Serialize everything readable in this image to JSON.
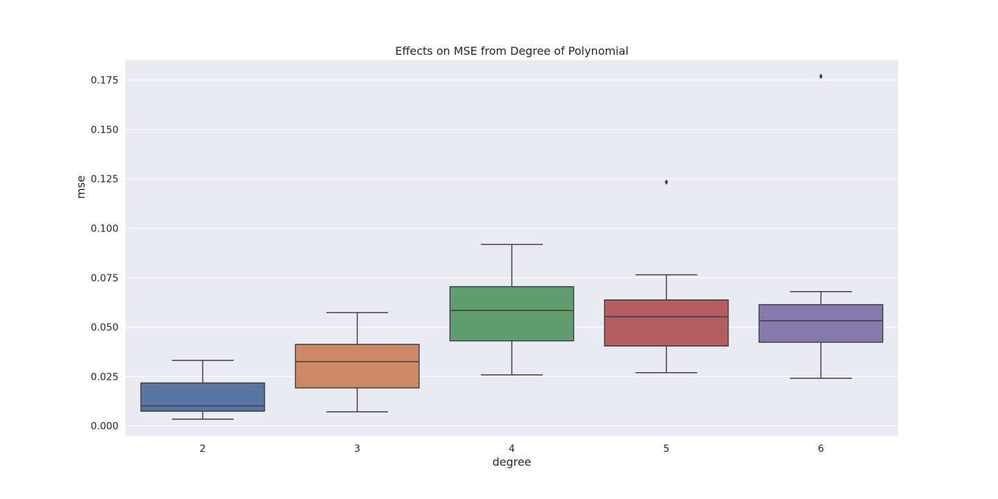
{
  "chart_data": {
    "type": "boxplot",
    "title": "Effects on MSE from Degree of Polynomial",
    "xlabel": "degree",
    "ylabel": "mse",
    "categories": [
      "2",
      "3",
      "4",
      "5",
      "6"
    ],
    "ylim": [
      -0.005,
      0.185
    ],
    "yticks": [
      0.0,
      0.025,
      0.05,
      0.075,
      0.1,
      0.125,
      0.15,
      0.175
    ],
    "ytick_labels": [
      "0.000",
      "0.025",
      "0.050",
      "0.075",
      "0.100",
      "0.125",
      "0.150",
      "0.175"
    ],
    "grid": true,
    "background_color": "#EAEAF2",
    "boxes": [
      {
        "category": "2",
        "whisker_low": 0.0035,
        "q1": 0.0075,
        "median": 0.0102,
        "q3": 0.0218,
        "whisker_high": 0.0332,
        "outliers": [],
        "color": "#5875A4"
      },
      {
        "category": "3",
        "whisker_low": 0.0072,
        "q1": 0.0193,
        "median": 0.0326,
        "q3": 0.0413,
        "whisker_high": 0.0574,
        "outliers": [],
        "color": "#CC8963"
      },
      {
        "category": "4",
        "whisker_low": 0.0259,
        "q1": 0.0431,
        "median": 0.0585,
        "q3": 0.0705,
        "whisker_high": 0.0919,
        "outliers": [],
        "color": "#5F9E6E"
      },
      {
        "category": "5",
        "whisker_low": 0.027,
        "q1": 0.0405,
        "median": 0.0553,
        "q3": 0.0638,
        "whisker_high": 0.0765,
        "outliers": [
          0.1234
        ],
        "color": "#B55D60"
      },
      {
        "category": "6",
        "whisker_low": 0.0242,
        "q1": 0.0424,
        "median": 0.0533,
        "q3": 0.0614,
        "whisker_high": 0.068,
        "outliers": [
          0.1769
        ],
        "color": "#857AAB"
      }
    ]
  }
}
